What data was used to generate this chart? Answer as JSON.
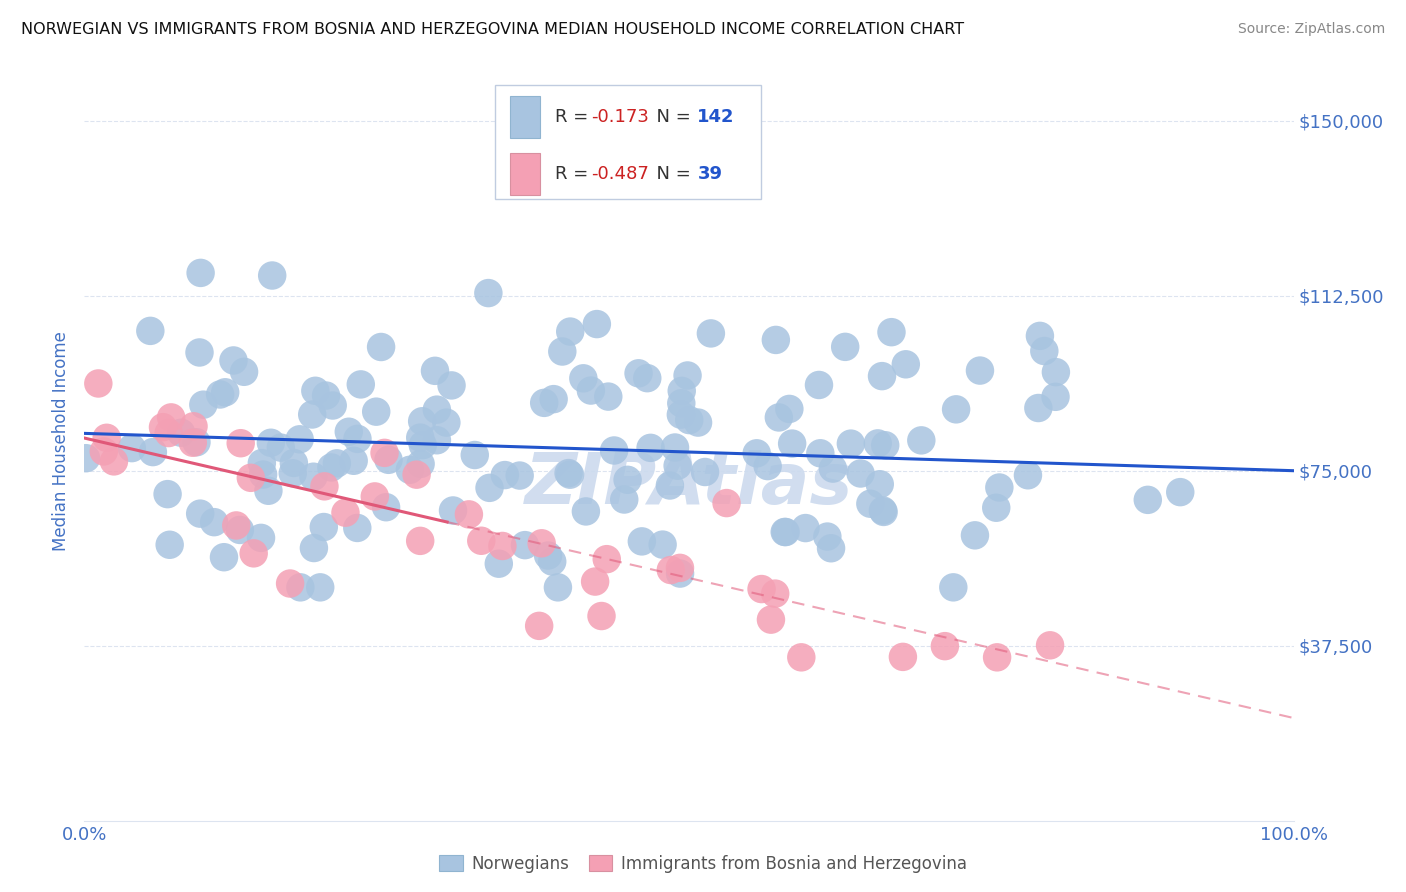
{
  "title": "NORWEGIAN VS IMMIGRANTS FROM BOSNIA AND HERZEGOVINA MEDIAN HOUSEHOLD INCOME CORRELATION CHART",
  "source": "Source: ZipAtlas.com",
  "ylabel": "Median Household Income",
  "ytick_vals": [
    37500,
    75000,
    112500,
    150000
  ],
  "ytick_labels": [
    "$37,500",
    "$75,000",
    "$112,500",
    "$150,000"
  ],
  "xtick_labels": [
    "0.0%",
    "100.0%"
  ],
  "xlim": [
    0,
    100
  ],
  "ylim": [
    0,
    162500
  ],
  "r_norwegian": -0.173,
  "n_norwegian": 142,
  "r_bosnian": -0.487,
  "n_bosnian": 39,
  "norwegian_color": "#a8c4e0",
  "bosnian_color": "#f4a0b4",
  "line_norwegian_color": "#2255cc",
  "line_bosnian_color": "#e05878",
  "watermark": "ZIPAtlas",
  "watermark_color": "#ccdaee",
  "title_color": "#111111",
  "source_color": "#888888",
  "axis_label_color": "#4472c4",
  "tick_label_color": "#4472c4",
  "grid_color": "#dde4f0",
  "background_color": "#ffffff",
  "legend_r_color": "#cc2222",
  "legend_n_color": "#2255cc",
  "legend_border_color": "#c0cce0",
  "nor_line_y0": 83000,
  "nor_line_y100": 75000,
  "bos_line_y0": 82000,
  "bos_line_y100": 22000,
  "bos_solid_end_x": 30
}
